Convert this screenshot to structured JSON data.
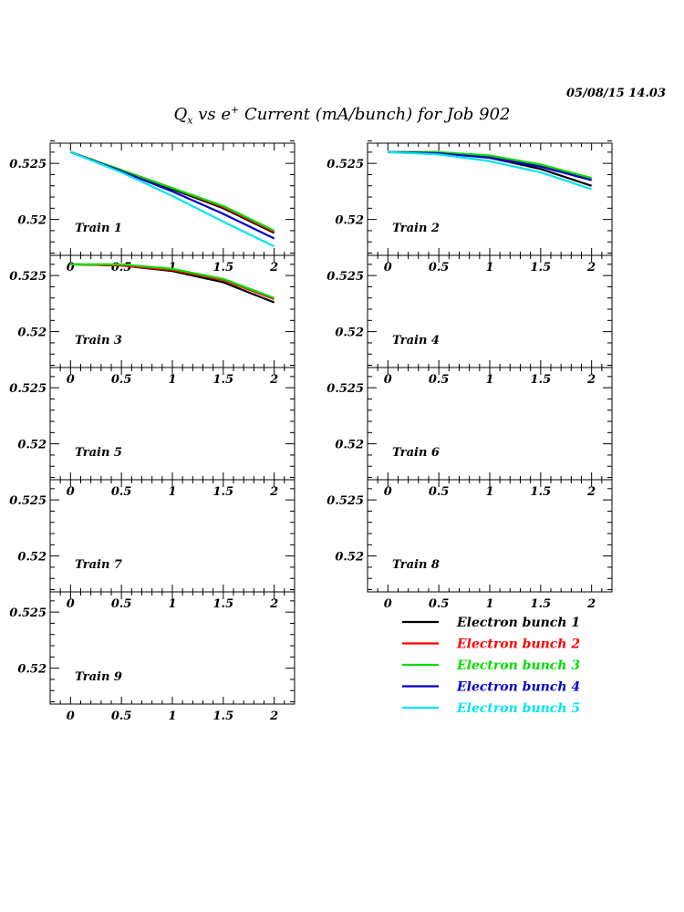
{
  "header": {
    "date": "05/08/15   14.03",
    "title_q": "Q",
    "title_sub": "x",
    "title_mid": " vs e",
    "title_sup": "+",
    "title_rest": " Current (mA/bunch) for Job 902"
  },
  "legend": [
    {
      "label": "Electron bunch 1",
      "color": "#000000"
    },
    {
      "label": "Electron bunch 2",
      "color": "#ff0000"
    },
    {
      "label": "Electron bunch 3",
      "color": "#00dd00"
    },
    {
      "label": "Electron bunch 4",
      "color": "#0000cc"
    },
    {
      "label": "Electron bunch 5",
      "color": "#00e5ee"
    }
  ],
  "chart_data": [
    {
      "type": "line",
      "title": "Train 1",
      "xlim": [
        -0.2,
        2.2
      ],
      "ylim": [
        0.5168,
        0.5268
      ],
      "xticks": [
        "0",
        "0.5",
        "1",
        "1.5",
        "2"
      ],
      "yticks": [
        "0.52",
        "0.525"
      ],
      "series": [
        {
          "name": "Electron bunch 1",
          "color": "#000000",
          "x": [
            0,
            0.5,
            1,
            1.5,
            2
          ],
          "y": [
            0.526,
            0.5244,
            0.5227,
            0.521,
            0.5188
          ]
        },
        {
          "name": "Electron bunch 2",
          "color": "#ff0000",
          "x": [
            0,
            0.5,
            1,
            1.5,
            2
          ],
          "y": [
            0.526,
            0.5244,
            0.5228,
            0.5211,
            0.5189
          ]
        },
        {
          "name": "Electron bunch 3",
          "color": "#00dd00",
          "x": [
            0,
            0.5,
            1,
            1.5,
            2
          ],
          "y": [
            0.526,
            0.5244,
            0.5228,
            0.5212,
            0.519
          ]
        },
        {
          "name": "Electron bunch 4",
          "color": "#0000cc",
          "x": [
            0,
            0.5,
            1,
            1.5,
            2
          ],
          "y": [
            0.526,
            0.5243,
            0.5225,
            0.5205,
            0.5183
          ]
        },
        {
          "name": "Electron bunch 5",
          "color": "#00e5ee",
          "x": [
            0,
            0.5,
            1,
            1.5,
            2
          ],
          "y": [
            0.526,
            0.5242,
            0.5221,
            0.5198,
            0.5176
          ]
        }
      ]
    },
    {
      "type": "line",
      "title": "Train 2",
      "xlim": [
        -0.2,
        2.2
      ],
      "ylim": [
        0.5168,
        0.5268
      ],
      "xticks": [
        "0",
        "0.5",
        "1",
        "1.5",
        "2"
      ],
      "yticks": [
        "0.52",
        "0.525"
      ],
      "series": [
        {
          "name": "Electron bunch 1",
          "color": "#000000",
          "x": [
            0,
            0.5,
            1,
            1.5,
            2
          ],
          "y": [
            0.526,
            0.526,
            0.5255,
            0.5245,
            0.523
          ]
        },
        {
          "name": "Electron bunch 2",
          "color": "#ff0000",
          "x": [
            0,
            0.5,
            1,
            1.5,
            2
          ],
          "y": [
            0.526,
            0.526,
            0.5256,
            0.5248,
            0.5236
          ]
        },
        {
          "name": "Electron bunch 3",
          "color": "#00dd00",
          "x": [
            0,
            0.5,
            1,
            1.5,
            2
          ],
          "y": [
            0.526,
            0.526,
            0.5257,
            0.5249,
            0.5237
          ]
        },
        {
          "name": "Electron bunch 4",
          "color": "#0000cc",
          "x": [
            0,
            0.5,
            1,
            1.5,
            2
          ],
          "y": [
            0.526,
            0.5259,
            0.5255,
            0.5247,
            0.5235
          ]
        },
        {
          "name": "Electron bunch 5",
          "color": "#00e5ee",
          "x": [
            0,
            0.5,
            1,
            1.5,
            2
          ],
          "y": [
            0.526,
            0.5258,
            0.5252,
            0.5242,
            0.5227
          ]
        }
      ]
    },
    {
      "type": "line",
      "title": "Train 3",
      "xlim": [
        -0.2,
        2.2
      ],
      "ylim": [
        0.5168,
        0.5268
      ],
      "xticks": [
        "0",
        "0.5",
        "1",
        "1.5",
        "2"
      ],
      "yticks": [
        "0.52",
        "0.525"
      ],
      "series": [
        {
          "name": "Electron bunch 1",
          "color": "#000000",
          "x": [
            0,
            0.5,
            1,
            1.5,
            2
          ],
          "y": [
            0.526,
            0.5259,
            0.5254,
            0.5244,
            0.5226
          ]
        },
        {
          "name": "Electron bunch 2",
          "color": "#ff0000",
          "x": [
            0,
            0.5,
            1,
            1.5,
            2
          ],
          "y": [
            0.526,
            0.5259,
            0.5255,
            0.5246,
            0.5229
          ]
        },
        {
          "name": "Electron bunch 3",
          "color": "#00dd00",
          "x": [
            0,
            0.5,
            1,
            1.5,
            2
          ],
          "y": [
            0.526,
            0.526,
            0.5256,
            0.5247,
            0.523
          ]
        },
        {
          "name": "Electron bunch 4",
          "color": "#0000cc",
          "x": [],
          "y": []
        },
        {
          "name": "Electron bunch 5",
          "color": "#00e5ee",
          "x": [],
          "y": []
        }
      ]
    },
    {
      "type": "line",
      "title": "Train 4",
      "xlim": [
        -0.2,
        2.2
      ],
      "ylim": [
        0.5168,
        0.5268
      ],
      "xticks": [
        "0",
        "0.5",
        "1",
        "1.5",
        "2"
      ],
      "yticks": [
        "0.52",
        "0.525"
      ],
      "series": []
    },
    {
      "type": "line",
      "title": "Train 5",
      "xlim": [
        -0.2,
        2.2
      ],
      "ylim": [
        0.5168,
        0.5268
      ],
      "xticks": [
        "0",
        "0.5",
        "1",
        "1.5",
        "2"
      ],
      "yticks": [
        "0.52",
        "0.525"
      ],
      "series": []
    },
    {
      "type": "line",
      "title": "Train 6",
      "xlim": [
        -0.2,
        2.2
      ],
      "ylim": [
        0.5168,
        0.5268
      ],
      "xticks": [
        "0",
        "0.5",
        "1",
        "1.5",
        "2"
      ],
      "yticks": [
        "0.52",
        "0.525"
      ],
      "series": []
    },
    {
      "type": "line",
      "title": "Train 7",
      "xlim": [
        -0.2,
        2.2
      ],
      "ylim": [
        0.5168,
        0.5268
      ],
      "xticks": [
        "0",
        "0.5",
        "1",
        "1.5",
        "2"
      ],
      "yticks": [
        "0.52",
        "0.525"
      ],
      "series": []
    },
    {
      "type": "line",
      "title": "Train 8",
      "xlim": [
        -0.2,
        2.2
      ],
      "ylim": [
        0.5168,
        0.5268
      ],
      "xticks": [
        "0",
        "0.5",
        "1",
        "1.5",
        "2"
      ],
      "yticks": [
        "0.52",
        "0.525"
      ],
      "series": []
    },
    {
      "type": "line",
      "title": "Train 9",
      "xlim": [
        -0.2,
        2.2
      ],
      "ylim": [
        0.5168,
        0.5268
      ],
      "xticks": [
        "0",
        "0.5",
        "1",
        "1.5",
        "2"
      ],
      "yticks": [
        "0.52",
        "0.525"
      ],
      "series": []
    }
  ]
}
